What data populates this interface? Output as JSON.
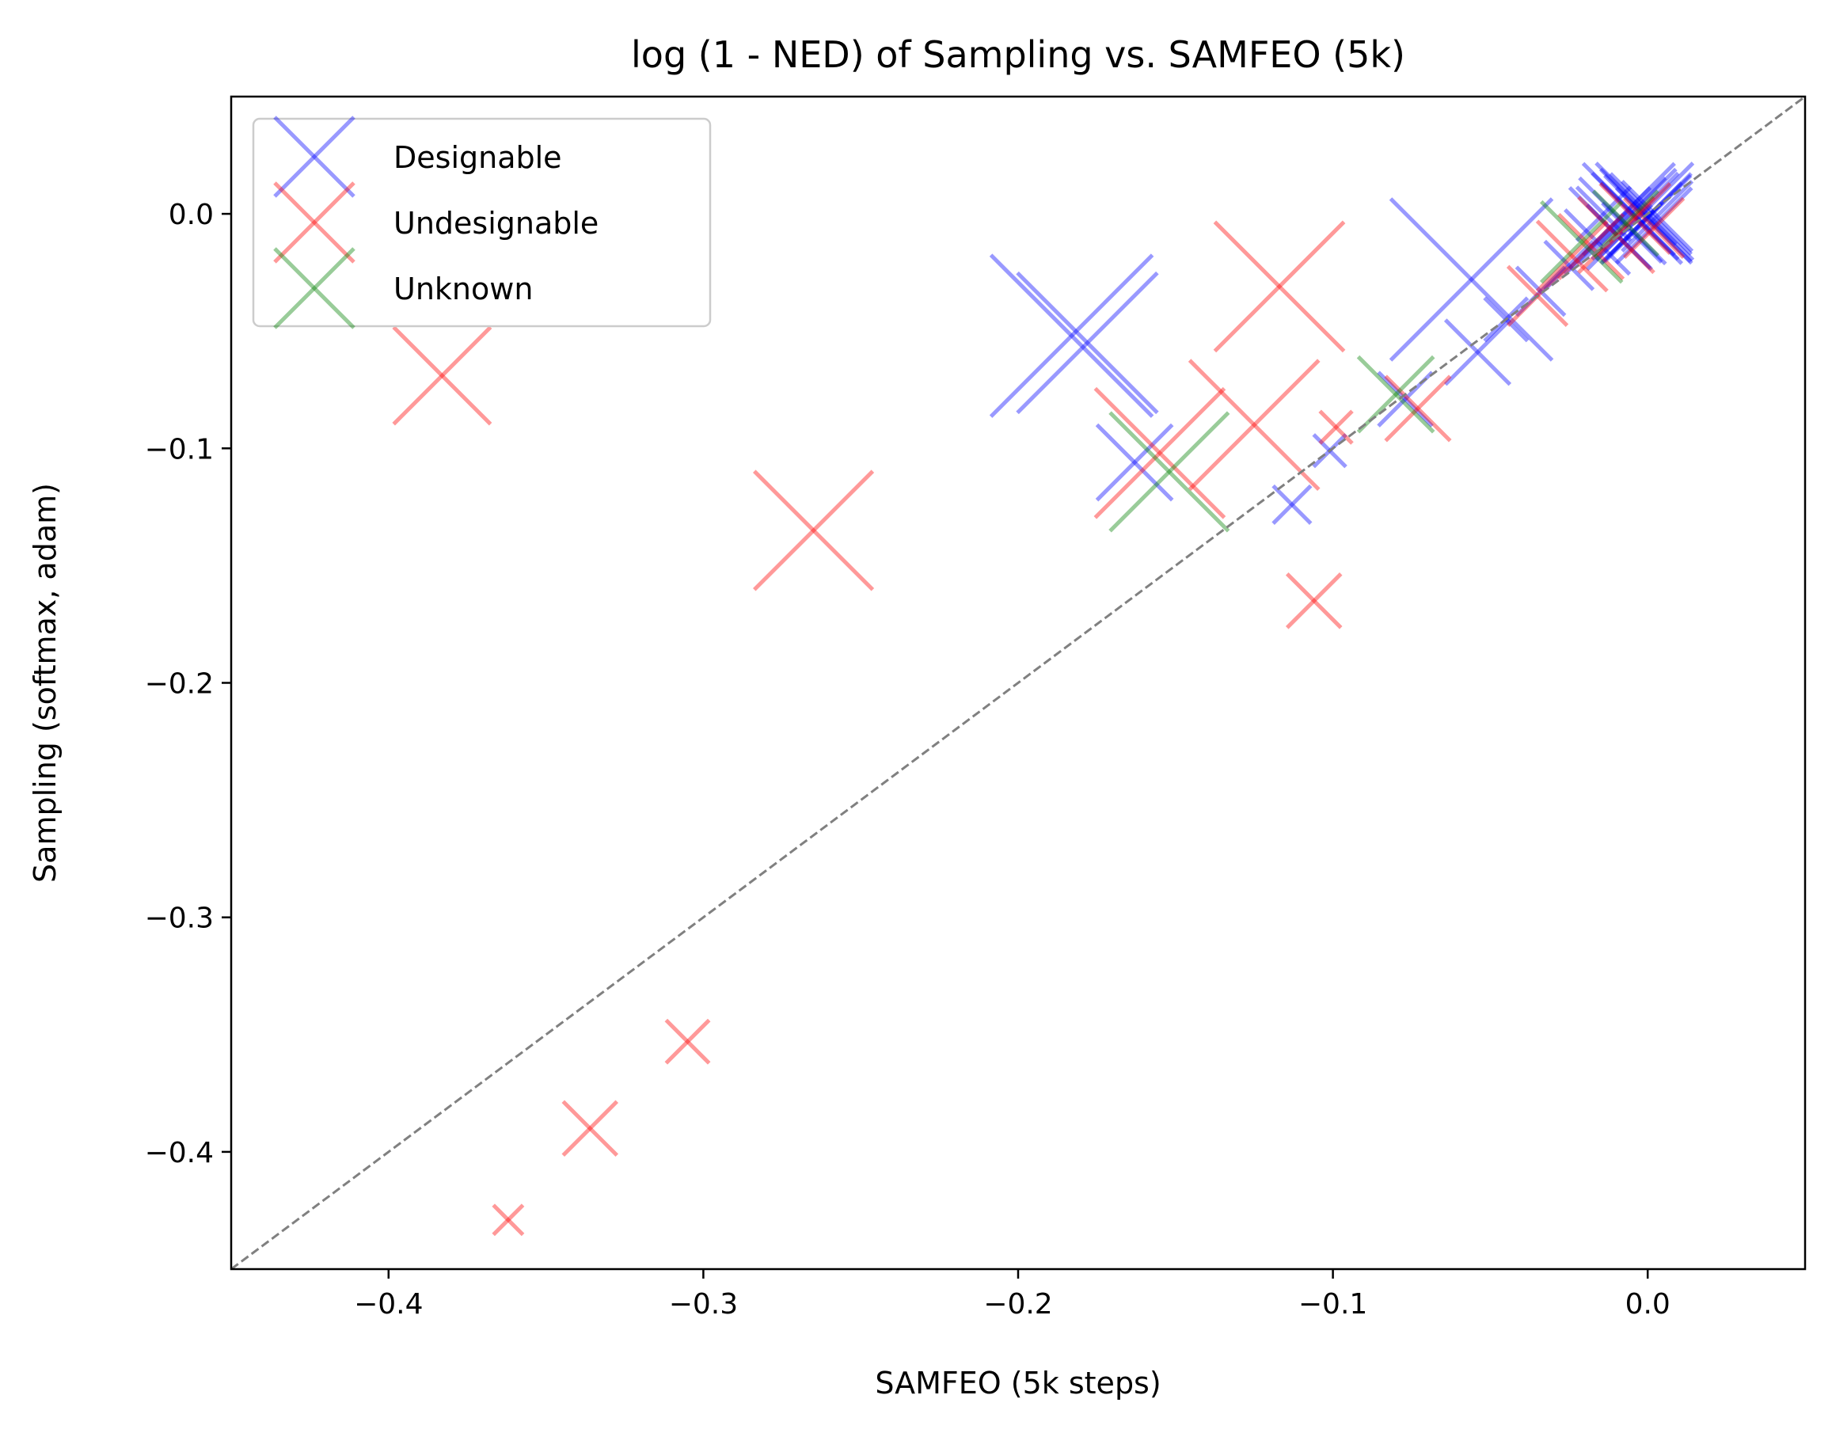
{
  "chart_data": {
    "type": "scatter",
    "title": "log (1 - NED) of Sampling vs. SAMFEO (5k)",
    "xlabel": "SAMFEO (5k steps)",
    "ylabel": "Sampling (softmax, adam)",
    "xlim": [
      -0.45,
      0.05
    ],
    "ylim": [
      -0.45,
      0.05
    ],
    "xticks": [
      -0.4,
      -0.3,
      -0.2,
      -0.1,
      0.0
    ],
    "yticks": [
      -0.4,
      -0.3,
      -0.2,
      -0.1,
      0.0
    ],
    "xtick_labels": [
      "−0.4",
      "−0.3",
      "−0.2",
      "−0.1",
      "0.0"
    ],
    "ytick_labels": [
      "−0.4",
      "−0.3",
      "−0.2",
      "−0.1",
      "0.0"
    ],
    "diagonal": true,
    "marker": "x",
    "legend_position": "top-left",
    "series": [
      {
        "name": "Designable",
        "color": "#0000ff",
        "points": [
          {
            "x": -0.183,
            "y": -0.052,
            "size": 3.0
          },
          {
            "x": -0.178,
            "y": -0.055,
            "size": 2.6
          },
          {
            "x": -0.163,
            "y": -0.106,
            "size": 1.4
          },
          {
            "x": -0.056,
            "y": -0.028,
            "size": 3.0
          },
          {
            "x": -0.054,
            "y": -0.059,
            "size": 1.2
          },
          {
            "x": -0.113,
            "y": -0.124,
            "size": 0.7
          },
          {
            "x": -0.101,
            "y": -0.101,
            "size": 0.6
          },
          {
            "x": -0.077,
            "y": -0.079,
            "size": 1.0
          },
          {
            "x": -0.045,
            "y": -0.045,
            "size": 0.8
          },
          {
            "x": -0.034,
            "y": -0.033,
            "size": 0.9
          },
          {
            "x": -0.025,
            "y": -0.022,
            "size": 0.9
          },
          {
            "x": -0.016,
            "y": -0.012,
            "size": 1.2
          },
          {
            "x": -0.012,
            "y": -0.006,
            "size": 1.5
          },
          {
            "x": -0.008,
            "y": -0.003,
            "size": 1.6
          },
          {
            "x": -0.006,
            "y": 0.002,
            "size": 1.7
          },
          {
            "x": -0.004,
            "y": -0.001,
            "size": 1.6
          },
          {
            "x": -0.003,
            "y": 0.003,
            "size": 1.4
          },
          {
            "x": -0.002,
            "y": -0.004,
            "size": 1.5
          },
          {
            "x": -0.001,
            "y": 0.001,
            "size": 1.8
          },
          {
            "x": 0.0,
            "y": -0.002,
            "size": 1.6
          },
          {
            "x": 0.001,
            "y": 0.0,
            "size": 1.5
          },
          {
            "x": 0.002,
            "y": -0.005,
            "size": 1.4
          },
          {
            "x": 0.003,
            "y": -0.001,
            "size": 1.3
          },
          {
            "x": -0.005,
            "y": -0.008,
            "size": 1.1
          },
          {
            "x": -0.009,
            "y": -0.01,
            "size": 1.2
          },
          {
            "x": -0.014,
            "y": 0.0,
            "size": 1.0
          }
        ]
      },
      {
        "name": "Undesignable",
        "color": "#ff0000",
        "points": [
          {
            "x": -0.383,
            "y": -0.069,
            "size": 1.8
          },
          {
            "x": -0.265,
            "y": -0.135,
            "size": 2.2
          },
          {
            "x": -0.117,
            "y": -0.031,
            "size": 2.4
          },
          {
            "x": -0.125,
            "y": -0.09,
            "size": 2.4
          },
          {
            "x": -0.155,
            "y": -0.102,
            "size": 2.4
          },
          {
            "x": -0.106,
            "y": -0.165,
            "size": 1.0
          },
          {
            "x": -0.099,
            "y": -0.091,
            "size": 0.6
          },
          {
            "x": -0.073,
            "y": -0.083,
            "size": 1.2
          },
          {
            "x": -0.305,
            "y": -0.353,
            "size": 0.8
          },
          {
            "x": -0.336,
            "y": -0.39,
            "size": 1.0
          },
          {
            "x": -0.362,
            "y": -0.429,
            "size": 0.55
          },
          {
            "x": -0.035,
            "y": -0.035,
            "size": 1.1
          },
          {
            "x": -0.024,
            "y": -0.018,
            "size": 1.3
          },
          {
            "x": -0.018,
            "y": -0.014,
            "size": 1.2
          },
          {
            "x": -0.01,
            "y": -0.009,
            "size": 1.4
          },
          {
            "x": -0.004,
            "y": -0.002,
            "size": 1.3
          },
          {
            "x": 0.002,
            "y": -0.006,
            "size": 1.1
          }
        ]
      },
      {
        "name": "Unknown",
        "color": "#008000",
        "points": [
          {
            "x": -0.152,
            "y": -0.11,
            "size": 2.2
          },
          {
            "x": -0.08,
            "y": -0.077,
            "size": 1.4
          },
          {
            "x": -0.021,
            "y": -0.012,
            "size": 1.5
          },
          {
            "x": -0.007,
            "y": -0.004,
            "size": 1.2
          }
        ]
      }
    ]
  }
}
